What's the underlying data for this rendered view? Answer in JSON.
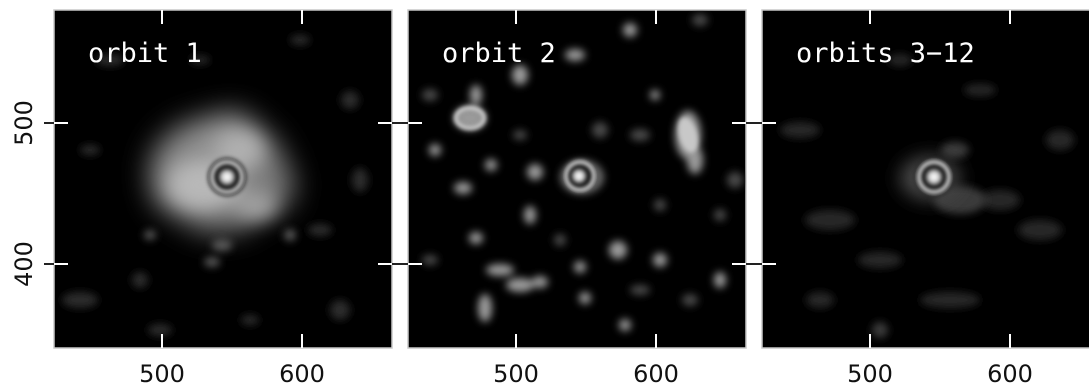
{
  "panels": [
    {
      "label": "orbit 1"
    },
    {
      "label": "orbit 2"
    },
    {
      "label": "orbits 3−12"
    }
  ],
  "axes": {
    "x_ticks": [
      "500",
      "600"
    ],
    "y_ticks": [
      "500",
      "400"
    ]
  },
  "colors": {
    "background": "#000000",
    "frame": "#c8c8c8",
    "label": "#ffffff"
  }
}
